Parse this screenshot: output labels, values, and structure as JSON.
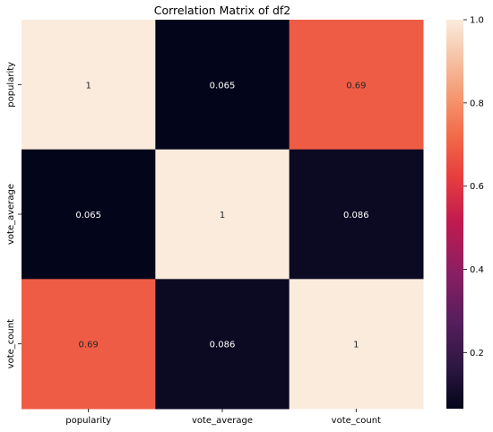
{
  "chart_data": {
    "type": "heatmap",
    "title": "Correlation Matrix of df2",
    "xlabel": "",
    "ylabel": "",
    "x_categories": [
      "popularity",
      "vote_average",
      "vote_count"
    ],
    "y_categories": [
      "popularity",
      "vote_average",
      "vote_count"
    ],
    "values": [
      [
        1,
        0.065,
        0.69
      ],
      [
        0.065,
        1,
        0.086
      ],
      [
        0.69,
        0.086,
        1
      ]
    ],
    "annotations": [
      [
        "1",
        "0.065",
        "0.69"
      ],
      [
        "0.065",
        "1",
        "0.086"
      ],
      [
        "0.69",
        "0.086",
        "1"
      ]
    ],
    "colorbar": {
      "colormap": "rocket",
      "vmin": 0.065,
      "vmax": 1.0,
      "ticks": [
        0.2,
        0.4,
        0.6,
        0.8,
        1.0
      ],
      "tick_labels": [
        "0.2",
        "0.4",
        "0.6",
        "0.8",
        "1.0"
      ]
    },
    "grid": false,
    "legend": "colorbar-right"
  }
}
